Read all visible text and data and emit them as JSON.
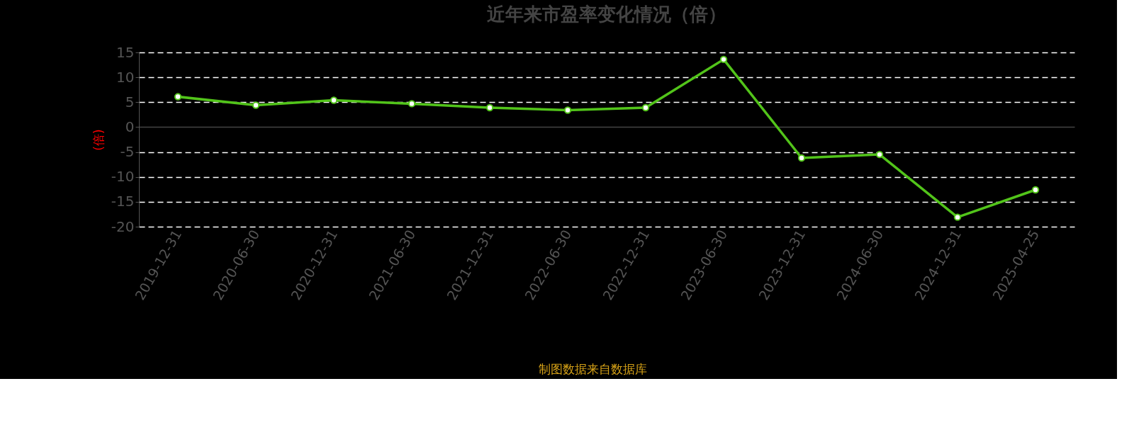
{
  "chart_data": {
    "type": "line",
    "title": "近年来市盈率变化情况（倍）",
    "ylabel": "(倍)",
    "categories": [
      "2019-12-31",
      "2020-06-30",
      "2020-12-31",
      "2021-06-30",
      "2021-12-31",
      "2022-06-30",
      "2022-12-31",
      "2023-06-30",
      "2023-12-31",
      "2024-06-30",
      "2024-12-31",
      "2025-04-25"
    ],
    "series": [
      {
        "color": "#52c41a",
        "values": [
          6.1,
          4.4,
          5.4,
          4.7,
          3.9,
          3.4,
          3.9,
          13.6,
          -6.2,
          -5.5,
          -18.1,
          -12.6
        ]
      }
    ],
    "ylim": [
      -20,
      15
    ],
    "yticks": [
      -20,
      -15,
      -10,
      -5,
      0,
      5,
      10,
      15
    ],
    "grid": "y",
    "marker": "circle",
    "line_style": "solid",
    "annotations": [
      "制图数据来自数据库"
    ]
  }
}
